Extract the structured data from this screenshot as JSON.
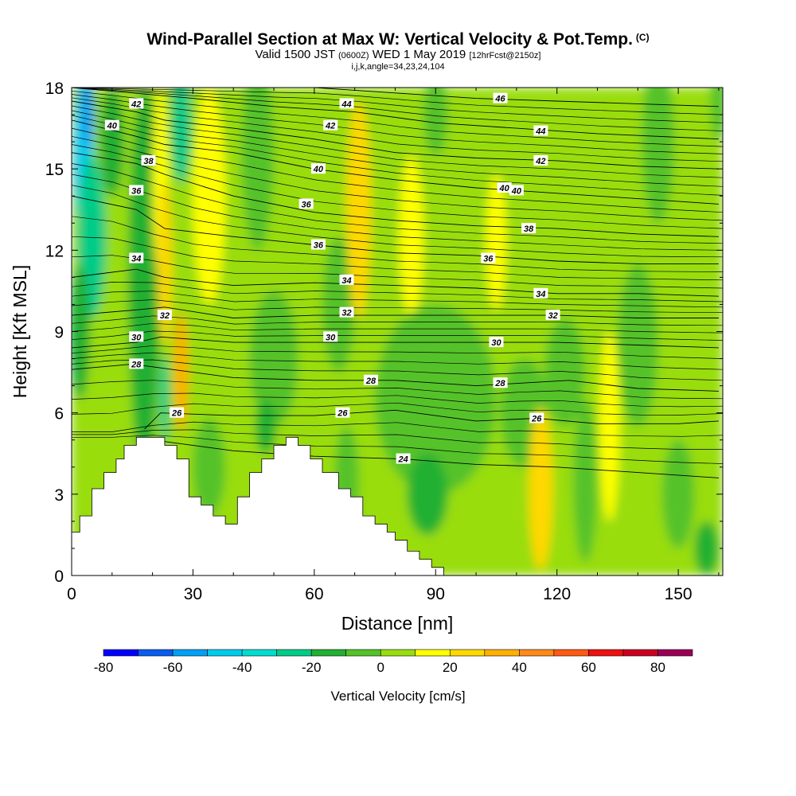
{
  "title": {
    "line1": "Wind-Parallel Section at Max W: Vertical Velocity & Pot.Temp.",
    "line1_tag": "(C)",
    "line2_a": "Valid 1500 JST",
    "line2_b": "(0600Z)",
    "line2_c": "WED 1 May 2019",
    "line2_d": "[12hrFcst@2150z]",
    "line3": "i,j,k,angle=34,23,24,104"
  },
  "chart_data": {
    "type": "heatmap",
    "xlabel": "Distance [nm]",
    "ylabel": "Height [Kft MSL]",
    "xlim": [
      0,
      161
    ],
    "ylim": [
      0,
      18
    ],
    "x_ticks": [
      "0",
      "30",
      "60",
      "90",
      "120",
      "150"
    ],
    "x_tick_values": [
      0,
      30,
      60,
      90,
      120,
      150
    ],
    "y_ticks": [
      "0",
      "3",
      "6",
      "9",
      "12",
      "15",
      "18"
    ],
    "y_tick_values": [
      0,
      3,
      6,
      9,
      12,
      15,
      18
    ],
    "colorbar": {
      "title": "Vertical Velocity [cm/s]",
      "labels": [
        "-80",
        "-60",
        "-40",
        "-20",
        "0",
        "20",
        "40",
        "60",
        "80"
      ],
      "label_values": [
        -80,
        -60,
        -40,
        -20,
        0,
        20,
        40,
        60,
        80
      ],
      "bounds": [
        -80,
        -70,
        -60,
        -50,
        -40,
        -30,
        -20,
        -10,
        0,
        10,
        20,
        30,
        40,
        50,
        60,
        70,
        80,
        90
      ],
      "colors": [
        "#0000ff",
        "#0a5cf0",
        "#00a0f5",
        "#00ccee",
        "#00ddd0",
        "#00cc88",
        "#22b033",
        "#55c22a",
        "#99dd11",
        "#ffff00",
        "#ffd800",
        "#ffb000",
        "#ff8a1a",
        "#ff5a14",
        "#ee1111",
        "#cc0022",
        "#990055",
        "#66008a"
      ]
    },
    "terrain_kft": [
      [
        0,
        1.6
      ],
      [
        2,
        1.6
      ],
      [
        2,
        2.2
      ],
      [
        5,
        2.2
      ],
      [
        5,
        3.2
      ],
      [
        8,
        3.2
      ],
      [
        8,
        3.8
      ],
      [
        11,
        3.8
      ],
      [
        11,
        4.3
      ],
      [
        13,
        4.3
      ],
      [
        13,
        4.8
      ],
      [
        16,
        4.8
      ],
      [
        16,
        5.1
      ],
      [
        23,
        5.1
      ],
      [
        23,
        4.8
      ],
      [
        26,
        4.8
      ],
      [
        26,
        4.3
      ],
      [
        29,
        4.3
      ],
      [
        29,
        2.9
      ],
      [
        32,
        2.9
      ],
      [
        32,
        2.6
      ],
      [
        35,
        2.6
      ],
      [
        35,
        2.2
      ],
      [
        38,
        2.2
      ],
      [
        38,
        1.9
      ],
      [
        41,
        1.9
      ],
      [
        41,
        2.9
      ],
      [
        44,
        2.9
      ],
      [
        44,
        3.8
      ],
      [
        47,
        3.8
      ],
      [
        47,
        4.3
      ],
      [
        50,
        4.3
      ],
      [
        50,
        4.8
      ],
      [
        53,
        4.8
      ],
      [
        53,
        5.1
      ],
      [
        56,
        5.1
      ],
      [
        56,
        4.8
      ],
      [
        59,
        4.8
      ],
      [
        59,
        4.3
      ],
      [
        62,
        4.3
      ],
      [
        62,
        3.8
      ],
      [
        66,
        3.8
      ],
      [
        66,
        3.2
      ],
      [
        69,
        3.2
      ],
      [
        69,
        2.9
      ],
      [
        72,
        2.9
      ],
      [
        72,
        2.2
      ],
      [
        75,
        2.2
      ],
      [
        75,
        1.9
      ],
      [
        78,
        1.9
      ],
      [
        78,
        1.6
      ],
      [
        80,
        1.6
      ],
      [
        80,
        1.3
      ],
      [
        83,
        1.3
      ],
      [
        83,
        0.9
      ],
      [
        86,
        0.9
      ],
      [
        86,
        0.6
      ],
      [
        89,
        0.6
      ],
      [
        89,
        0.3
      ],
      [
        92,
        0.3
      ],
      [
        92,
        0
      ]
    ],
    "theta_contour_labels_C": [
      "24",
      "26",
      "28",
      "30",
      "32",
      "34",
      "36",
      "38",
      "40",
      "42",
      "44",
      "46"
    ],
    "theta_contours": [
      {
        "value": "24",
        "points": [
          [
            20,
            5.0
          ],
          [
            40,
            4.6
          ],
          [
            60,
            4.4
          ],
          [
            82,
            4.3
          ],
          [
            100,
            4.1
          ],
          [
            120,
            4.0
          ],
          [
            140,
            3.8
          ],
          [
            160,
            3.6
          ]
        ],
        "label_at": [
          82,
          4.3
        ]
      },
      {
        "value": "26",
        "points": [
          [
            18,
            5.4
          ],
          [
            22,
            6.0
          ],
          [
            40,
            5.9
          ],
          [
            60,
            5.9
          ],
          [
            80,
            6.1
          ],
          [
            100,
            5.7
          ],
          [
            115,
            5.8
          ],
          [
            130,
            5.6
          ],
          [
            150,
            5.6
          ],
          [
            160,
            5.7
          ]
        ],
        "label_at": [
          115,
          5.8
        ]
      },
      {
        "value": "28",
        "points": [
          [
            0,
            7.6
          ],
          [
            15,
            7.8
          ],
          [
            20,
            7.7
          ],
          [
            40,
            7.3
          ],
          [
            60,
            7.2
          ],
          [
            80,
            7.2
          ],
          [
            100,
            7.0
          ],
          [
            123,
            7.2
          ],
          [
            140,
            6.9
          ],
          [
            160,
            6.8
          ]
        ],
        "label_at": [
          74,
          7.2
        ]
      },
      {
        "value": "30",
        "points": [
          [
            0,
            8.4
          ],
          [
            16,
            8.6
          ],
          [
            22,
            8.8
          ],
          [
            40,
            8.6
          ],
          [
            60,
            8.6
          ],
          [
            80,
            8.6
          ],
          [
            100,
            8.6
          ],
          [
            120,
            8.6
          ],
          [
            140,
            8.5
          ],
          [
            160,
            8.4
          ]
        ],
        "label_at": [
          105,
          8.6
        ]
      },
      {
        "value": "32",
        "points": [
          [
            0,
            9.6
          ],
          [
            16,
            9.8
          ],
          [
            23,
            9.9
          ],
          [
            40,
            9.5
          ],
          [
            60,
            9.6
          ],
          [
            80,
            9.6
          ],
          [
            100,
            9.6
          ],
          [
            120,
            9.6
          ],
          [
            140,
            9.5
          ],
          [
            160,
            9.5
          ]
        ],
        "label_at": [
          119,
          9.6
        ]
      },
      {
        "value": "34",
        "points": [
          [
            0,
            11.0
          ],
          [
            16,
            11.3
          ],
          [
            23,
            11.0
          ],
          [
            40,
            10.7
          ],
          [
            60,
            10.8
          ],
          [
            80,
            10.7
          ],
          [
            100,
            10.6
          ],
          [
            120,
            10.4
          ],
          [
            140,
            10.4
          ],
          [
            160,
            10.3
          ]
        ],
        "label_at": [
          116,
          10.4
        ]
      },
      {
        "value": "36",
        "points": [
          [
            0,
            14.0
          ],
          [
            16,
            13.5
          ],
          [
            23,
            12.8
          ],
          [
            40,
            12.5
          ],
          [
            60,
            12.2
          ],
          [
            80,
            11.9
          ],
          [
            100,
            11.8
          ],
          [
            120,
            11.6
          ],
          [
            140,
            11.5
          ],
          [
            160,
            11.5
          ]
        ],
        "label_at": [
          103,
          11.7
        ]
      },
      {
        "value": "38",
        "points": [
          [
            0,
            15.6
          ],
          [
            16,
            15.2
          ],
          [
            23,
            14.8
          ],
          [
            40,
            14.0
          ],
          [
            60,
            13.4
          ],
          [
            80,
            13.1
          ],
          [
            100,
            12.9
          ],
          [
            120,
            12.8
          ],
          [
            140,
            12.6
          ],
          [
            160,
            12.5
          ]
        ],
        "label_at": [
          113,
          12.8
        ]
      },
      {
        "value": "40",
        "points": [
          [
            0,
            16.8
          ],
          [
            16,
            16.2
          ],
          [
            23,
            15.9
          ],
          [
            40,
            15.6
          ],
          [
            60,
            15.0
          ],
          [
            80,
            14.6
          ],
          [
            100,
            14.3
          ],
          [
            120,
            14.1
          ],
          [
            140,
            13.9
          ],
          [
            160,
            13.7
          ]
        ],
        "label_at": [
          110,
          14.2
        ]
      },
      {
        "value": "42",
        "points": [
          [
            0,
            17.5
          ],
          [
            16,
            17.1
          ],
          [
            23,
            16.8
          ],
          [
            40,
            16.5
          ],
          [
            60,
            16.1
          ],
          [
            80,
            15.6
          ],
          [
            100,
            15.4
          ],
          [
            120,
            15.3
          ],
          [
            140,
            15.1
          ],
          [
            160,
            15.0
          ]
        ],
        "label_at": [
          116,
          15.3
        ]
      },
      {
        "value": "44",
        "points": [
          [
            0,
            18.0
          ],
          [
            30,
            17.6
          ],
          [
            50,
            17.3
          ],
          [
            70,
            17.1
          ],
          [
            90,
            16.7
          ],
          [
            110,
            16.5
          ],
          [
            130,
            16.3
          ],
          [
            160,
            16.1
          ]
        ],
        "label_at": [
          116,
          16.4
        ]
      },
      {
        "value": "46",
        "points": [
          [
            60,
            18.0
          ],
          [
            80,
            17.8
          ],
          [
            100,
            17.6
          ],
          [
            120,
            17.5
          ],
          [
            140,
            17.4
          ],
          [
            160,
            17.3
          ]
        ],
        "label_at": [
          106,
          17.6
        ]
      }
    ],
    "extra_contour_labels": [
      {
        "value": "42",
        "at": [
          16,
          17.4
        ]
      },
      {
        "value": "40",
        "at": [
          10,
          16.6
        ]
      },
      {
        "value": "38",
        "at": [
          19,
          15.3
        ]
      },
      {
        "value": "36",
        "at": [
          16,
          14.2
        ]
      },
      {
        "value": "34",
        "at": [
          16,
          11.7
        ]
      },
      {
        "value": "32",
        "at": [
          23,
          9.6
        ]
      },
      {
        "value": "30",
        "at": [
          16,
          8.8
        ]
      },
      {
        "value": "28",
        "at": [
          16,
          7.8
        ]
      },
      {
        "value": "26",
        "at": [
          26,
          6.0
        ]
      },
      {
        "value": "44",
        "at": [
          68,
          17.4
        ]
      },
      {
        "value": "42",
        "at": [
          64,
          16.6
        ]
      },
      {
        "value": "40",
        "at": [
          61,
          15.0
        ]
      },
      {
        "value": "36",
        "at": [
          58,
          13.7
        ]
      },
      {
        "value": "36",
        "at": [
          61,
          12.2
        ]
      },
      {
        "value": "34",
        "at": [
          68,
          10.9
        ]
      },
      {
        "value": "32",
        "at": [
          68,
          9.7
        ]
      },
      {
        "value": "30",
        "at": [
          64,
          8.8
        ]
      },
      {
        "value": "26",
        "at": [
          67,
          6.0
        ]
      },
      {
        "value": "28",
        "at": [
          106,
          7.1
        ]
      },
      {
        "value": "40",
        "at": [
          107,
          14.3
        ]
      }
    ],
    "w_field_cmps": [
      {
        "x": 3,
        "y": 15.5,
        "rx": 2.5,
        "ry": 2.8,
        "w": -45
      },
      {
        "x": 4,
        "y": 17.0,
        "rx": 1.6,
        "ry": 1.2,
        "w": -55
      },
      {
        "x": 5,
        "y": 12.5,
        "rx": 3.5,
        "ry": 3.0,
        "w": -22
      },
      {
        "x": 2,
        "y": 9.0,
        "rx": 2.5,
        "ry": 2.5,
        "w": -15
      },
      {
        "x": 10,
        "y": 16.0,
        "rx": 3.0,
        "ry": 2.0,
        "w": -15
      },
      {
        "x": 18,
        "y": 11.0,
        "rx": 4.0,
        "ry": 7.0,
        "w": -12
      },
      {
        "x": 22,
        "y": 14.5,
        "rx": 2.0,
        "ry": 3.5,
        "w": 18
      },
      {
        "x": 23,
        "y": 11.5,
        "rx": 1.8,
        "ry": 3.0,
        "w": 25
      },
      {
        "x": 27,
        "y": 16.5,
        "rx": 2.5,
        "ry": 2.0,
        "w": -25
      },
      {
        "x": 27,
        "y": 7.5,
        "rx": 1.8,
        "ry": 2.2,
        "w": 30
      },
      {
        "x": 23,
        "y": 6.5,
        "rx": 1.2,
        "ry": 1.6,
        "w": -28
      },
      {
        "x": 34,
        "y": 14.0,
        "rx": 4.0,
        "ry": 4.0,
        "w": 12
      },
      {
        "x": 34,
        "y": 4.0,
        "rx": 4.0,
        "ry": 1.8,
        "w": -8
      },
      {
        "x": 46,
        "y": 15.5,
        "rx": 4.0,
        "ry": 3.5,
        "w": -8
      },
      {
        "x": 50,
        "y": 8.0,
        "rx": 6.0,
        "ry": 2.5,
        "w": -6
      },
      {
        "x": 48,
        "y": 5.5,
        "rx": 2.5,
        "ry": 1.0,
        "w": -20
      },
      {
        "x": 66,
        "y": 10.0,
        "rx": 4.0,
        "ry": 2.5,
        "w": -8
      },
      {
        "x": 68,
        "y": 3.5,
        "rx": 3.0,
        "ry": 2.0,
        "w": -8
      },
      {
        "x": 71,
        "y": 13.5,
        "rx": 3.0,
        "ry": 4.0,
        "w": 22
      },
      {
        "x": 84,
        "y": 12.5,
        "rx": 3.0,
        "ry": 3.0,
        "w": 15
      },
      {
        "x": 90,
        "y": 6.5,
        "rx": 15.0,
        "ry": 3.5,
        "w": -7
      },
      {
        "x": 88,
        "y": 3.0,
        "rx": 5.0,
        "ry": 1.5,
        "w": -12
      },
      {
        "x": 90,
        "y": 17.0,
        "rx": 3.0,
        "ry": 1.5,
        "w": -6
      },
      {
        "x": 105,
        "y": 12.3,
        "rx": 2.5,
        "ry": 2.5,
        "w": 15
      },
      {
        "x": 112,
        "y": 6.0,
        "rx": 6.0,
        "ry": 2.0,
        "w": -6
      },
      {
        "x": 116,
        "y": 3.2,
        "rx": 3.0,
        "ry": 3.0,
        "w": 28
      },
      {
        "x": 122,
        "y": 7.5,
        "rx": 5.0,
        "ry": 2.0,
        "w": -8
      },
      {
        "x": 127,
        "y": 3.5,
        "rx": 3.0,
        "ry": 3.0,
        "w": -8
      },
      {
        "x": 133,
        "y": 5.5,
        "rx": 2.5,
        "ry": 3.5,
        "w": 18
      },
      {
        "x": 140,
        "y": 8.5,
        "rx": 5.0,
        "ry": 3.0,
        "w": -8
      },
      {
        "x": 145,
        "y": 16.0,
        "rx": 4.0,
        "ry": 3.0,
        "w": -10
      },
      {
        "x": 150,
        "y": 3.0,
        "rx": 4.0,
        "ry": 2.0,
        "w": -8
      },
      {
        "x": 157,
        "y": 1.0,
        "rx": 3.0,
        "ry": 1.0,
        "w": -12
      },
      {
        "x": 160,
        "y": 17.5,
        "rx": 2.0,
        "ry": 1.5,
        "w": -10
      }
    ]
  }
}
